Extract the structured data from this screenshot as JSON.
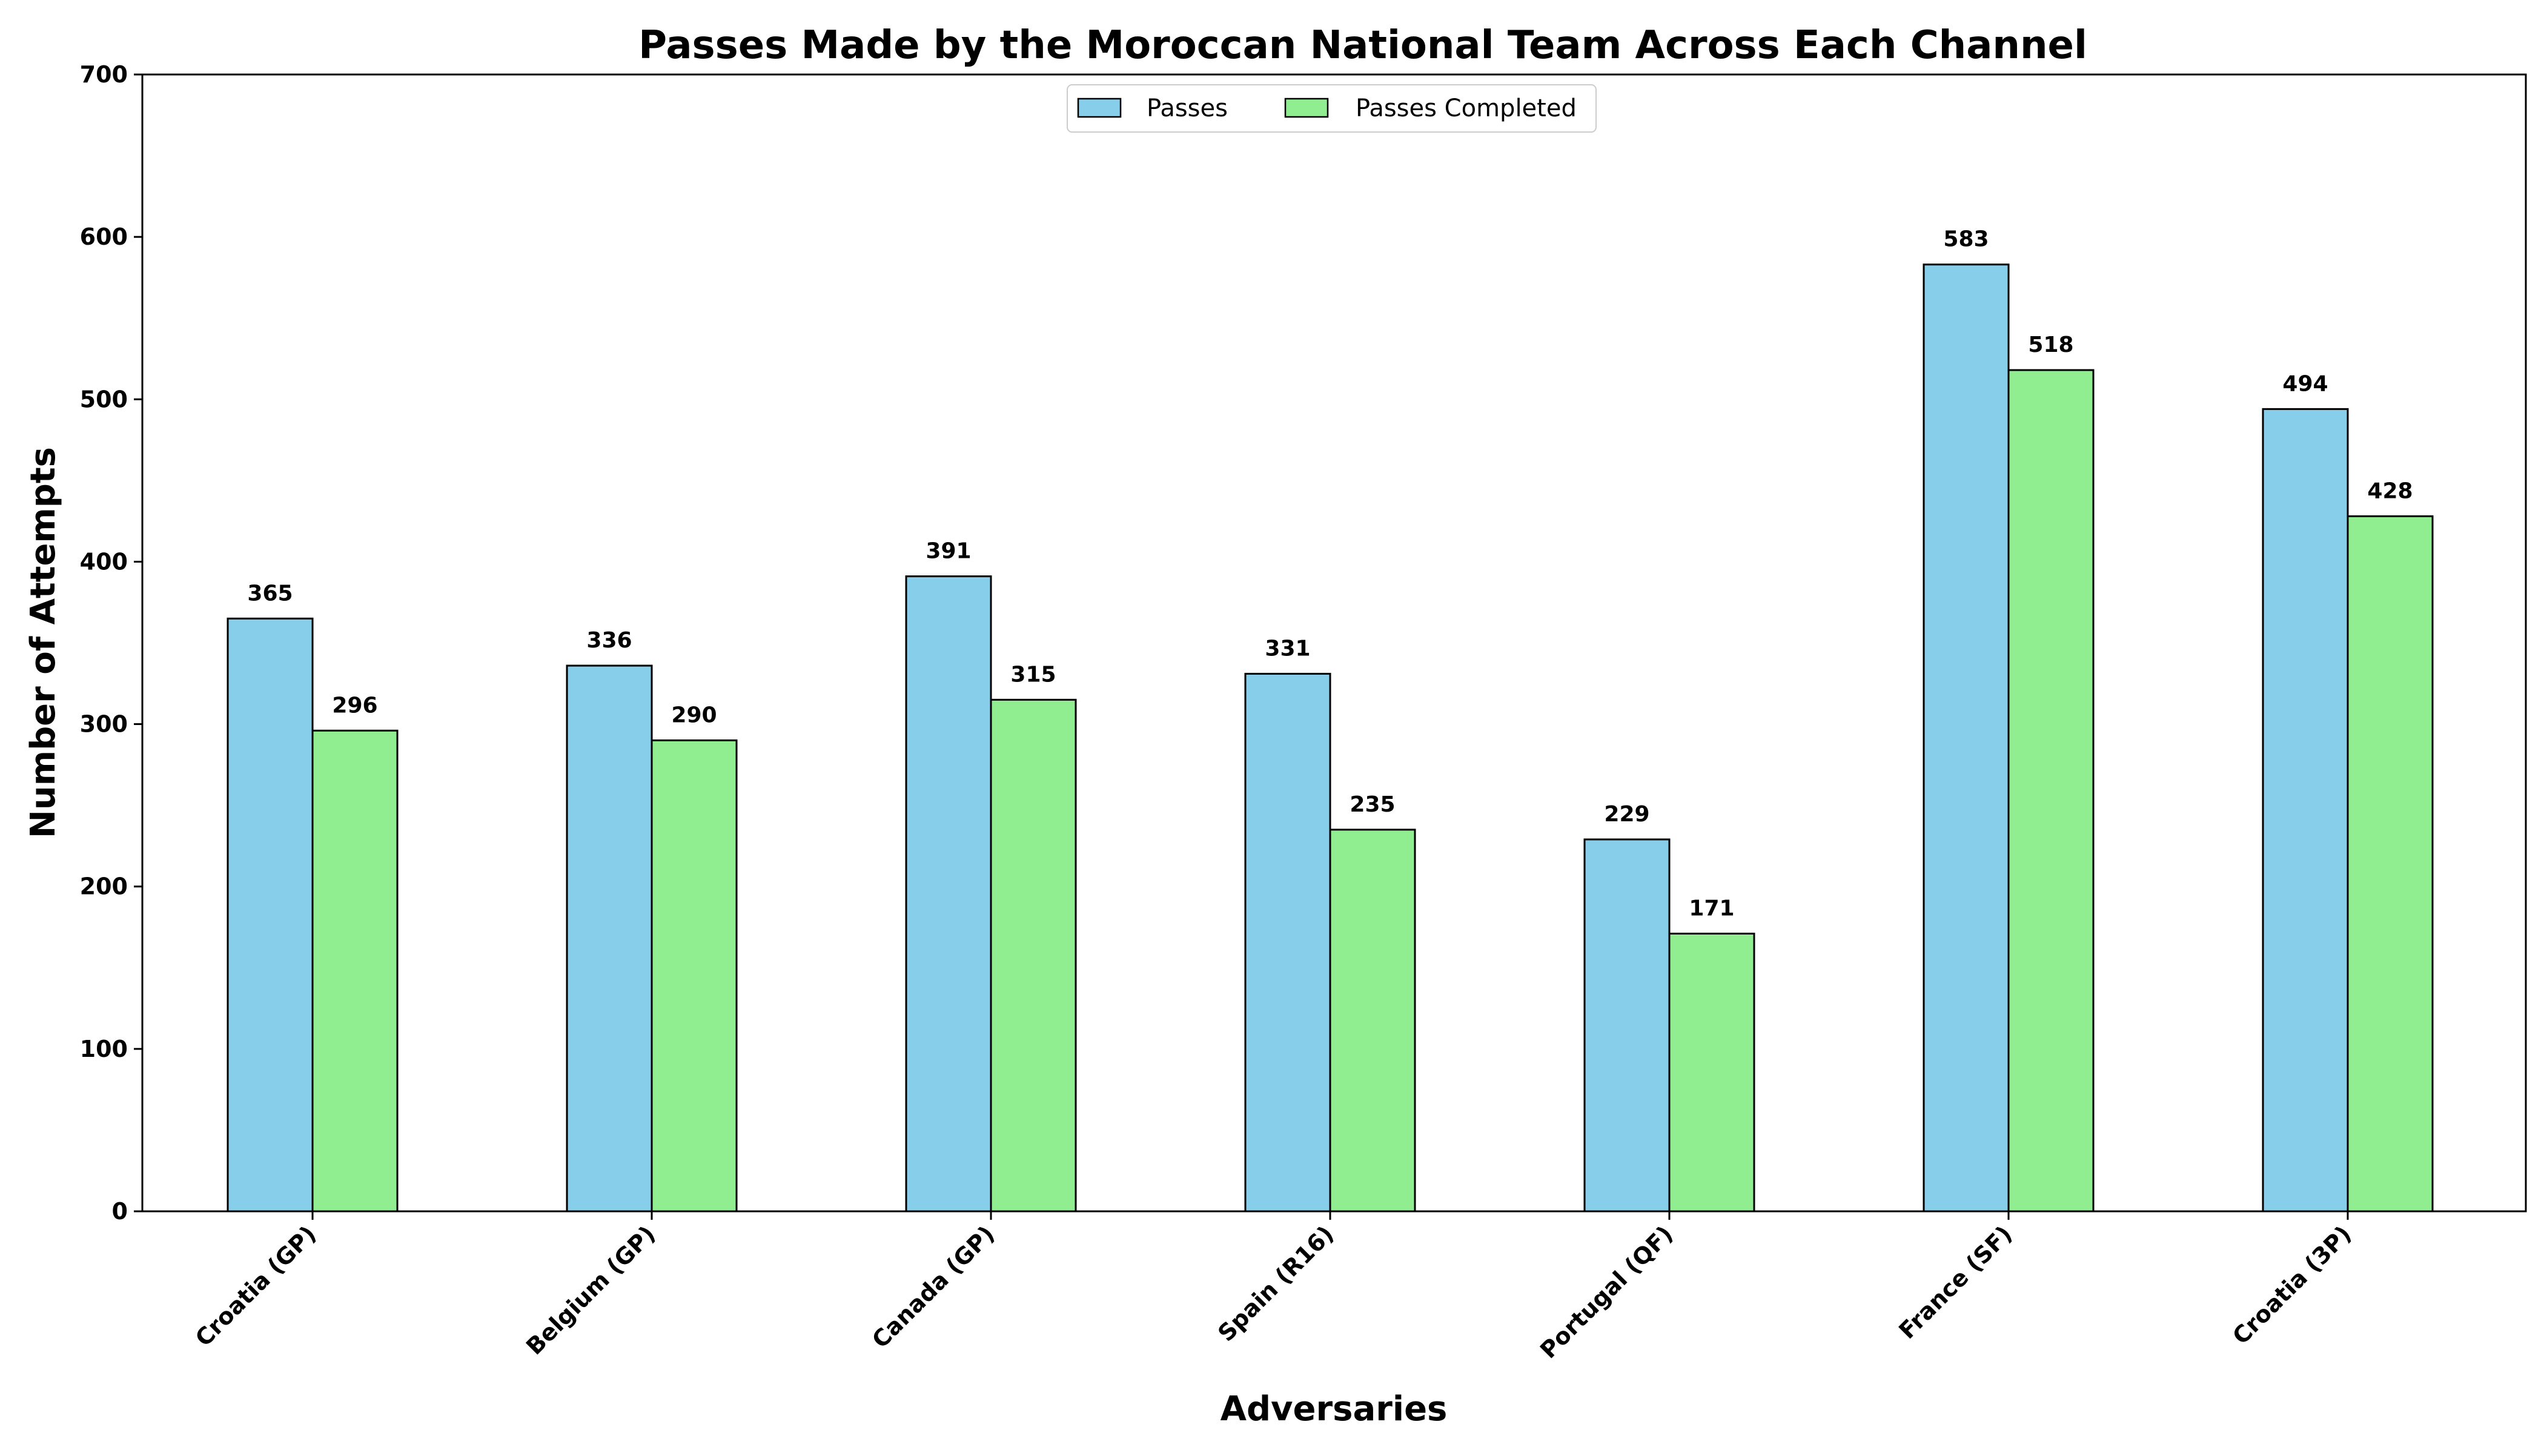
{
  "chart_data": {
    "type": "bar",
    "title": "Passes Made by the Moroccan National Team Across Each Channel",
    "xlabel": "Adversaries",
    "ylabel": "Number of Attempts",
    "ylim": [
      0,
      700
    ],
    "yticks": [
      0,
      100,
      200,
      300,
      400,
      500,
      600,
      700
    ],
    "categories": [
      "Croatia (GP)",
      "Belgium (GP)",
      "Canada (GP)",
      "Spain (R16)",
      "Portugal (QF)",
      "France (SF)",
      "Croatia (3P)"
    ],
    "series": [
      {
        "name": "Passes",
        "values": [
          365,
          336,
          391,
          331,
          229,
          583,
          494
        ],
        "color": "#87CEEB"
      },
      {
        "name": "Passes Completed",
        "values": [
          296,
          290,
          315,
          235,
          171,
          518,
          428
        ],
        "color": "#90EE90"
      }
    ],
    "grid": false,
    "legend_position": "top-center",
    "bar_edge_color": "#000000"
  }
}
